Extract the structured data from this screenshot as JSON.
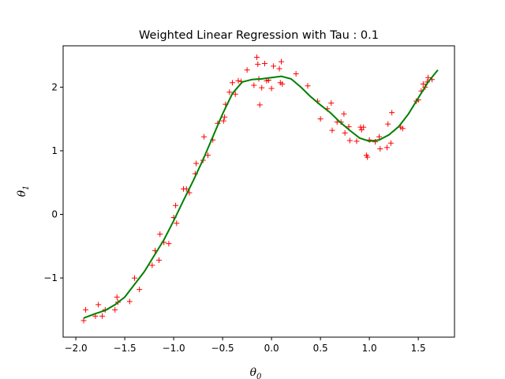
{
  "chart_data": {
    "type": "scatter",
    "title": "Weighted Linear Regression with Tau : 0.1",
    "xlabel": "θ",
    "xlabel_sub": "0",
    "ylabel": "θ",
    "ylabel_sub": "1",
    "xlim": [
      -2.13,
      1.87
    ],
    "ylim": [
      -1.93,
      2.65
    ],
    "xticks": [
      -2.0,
      -1.5,
      -1.0,
      -0.5,
      0.0,
      0.5,
      1.0,
      1.5
    ],
    "xtick_labels": [
      "−2.0",
      "−1.5",
      "−1.0",
      "−0.5",
      "0.0",
      "0.5",
      "1.0",
      "1.5"
    ],
    "yticks": [
      -1,
      0,
      1,
      2
    ],
    "ytick_labels": [
      "−1",
      "0",
      "1",
      "2"
    ],
    "grid": false,
    "series": [
      {
        "kind": "scatter",
        "marker": "+",
        "color": "#ff0000",
        "points": [
          [
            -1.92,
            -1.67
          ],
          [
            -1.9,
            -1.5
          ],
          [
            -1.8,
            -1.6
          ],
          [
            -1.77,
            -1.42
          ],
          [
            -1.73,
            -1.6
          ],
          [
            -1.7,
            -1.5
          ],
          [
            -1.6,
            -1.5
          ],
          [
            -1.58,
            -1.3
          ],
          [
            -1.57,
            -1.38
          ],
          [
            -1.45,
            -1.37
          ],
          [
            -1.4,
            -1.0
          ],
          [
            -1.35,
            -1.18
          ],
          [
            -1.22,
            -0.8
          ],
          [
            -1.19,
            -0.57
          ],
          [
            -1.15,
            -0.72
          ],
          [
            -1.14,
            -0.31
          ],
          [
            -1.1,
            -0.44
          ],
          [
            -1.05,
            -0.46
          ],
          [
            -1.0,
            -0.05
          ],
          [
            -0.98,
            0.14
          ],
          [
            -0.97,
            -0.14
          ],
          [
            -0.9,
            0.4
          ],
          [
            -0.87,
            0.4
          ],
          [
            -0.84,
            0.34
          ],
          [
            -0.78,
            0.64
          ],
          [
            -0.77,
            0.8
          ],
          [
            -0.7,
            0.85
          ],
          [
            -0.69,
            1.22
          ],
          [
            -0.65,
            0.93
          ],
          [
            -0.6,
            1.17
          ],
          [
            -0.55,
            1.43
          ],
          [
            -0.49,
            1.47
          ],
          [
            -0.48,
            1.53
          ],
          [
            -0.47,
            1.73
          ],
          [
            -0.43,
            1.92
          ],
          [
            -0.4,
            2.07
          ],
          [
            -0.37,
            1.89
          ],
          [
            -0.34,
            2.1
          ],
          [
            -0.31,
            2.09
          ],
          [
            -0.25,
            2.27
          ],
          [
            -0.18,
            2.03
          ],
          [
            -0.15,
            2.47
          ],
          [
            -0.14,
            2.36
          ],
          [
            -0.13,
            2.13
          ],
          [
            -0.12,
            1.72
          ],
          [
            -0.1,
            1.99
          ],
          [
            -0.07,
            2.37
          ],
          [
            -0.05,
            2.1
          ],
          [
            -0.03,
            2.11
          ],
          [
            0.0,
            1.98
          ],
          [
            0.02,
            2.33
          ],
          [
            0.08,
            2.29
          ],
          [
            0.09,
            2.07
          ],
          [
            0.1,
            2.4
          ],
          [
            0.11,
            2.05
          ],
          [
            0.25,
            2.21
          ],
          [
            0.37,
            2.02
          ],
          [
            0.47,
            1.78
          ],
          [
            0.5,
            1.5
          ],
          [
            0.57,
            1.66
          ],
          [
            0.61,
            1.75
          ],
          [
            0.62,
            1.32
          ],
          [
            0.67,
            1.45
          ],
          [
            0.71,
            1.45
          ],
          [
            0.74,
            1.58
          ],
          [
            0.75,
            1.28
          ],
          [
            0.79,
            1.38
          ],
          [
            0.8,
            1.16
          ],
          [
            0.87,
            1.15
          ],
          [
            0.91,
            1.37
          ],
          [
            0.92,
            1.33
          ],
          [
            0.94,
            1.37
          ],
          [
            0.97,
            0.93
          ],
          [
            0.98,
            0.9
          ],
          [
            1.0,
            1.17
          ],
          [
            1.06,
            1.14
          ],
          [
            1.1,
            1.22
          ],
          [
            1.11,
            1.03
          ],
          [
            1.18,
            1.05
          ],
          [
            1.19,
            1.42
          ],
          [
            1.22,
            1.12
          ],
          [
            1.23,
            1.6
          ],
          [
            1.32,
            1.37
          ],
          [
            1.34,
            1.35
          ],
          [
            1.48,
            1.78
          ],
          [
            1.5,
            1.8
          ],
          [
            1.53,
            1.94
          ],
          [
            1.55,
            2.05
          ],
          [
            1.57,
            2.0
          ],
          [
            1.59,
            2.08
          ],
          [
            1.6,
            2.15
          ],
          [
            1.64,
            2.12
          ]
        ]
      },
      {
        "kind": "line",
        "color": "#008000",
        "points": [
          [
            -1.92,
            -1.63
          ],
          [
            -1.8,
            -1.56
          ],
          [
            -1.7,
            -1.51
          ],
          [
            -1.6,
            -1.42
          ],
          [
            -1.5,
            -1.3
          ],
          [
            -1.4,
            -1.1
          ],
          [
            -1.3,
            -0.9
          ],
          [
            -1.2,
            -0.65
          ],
          [
            -1.1,
            -0.4
          ],
          [
            -1.0,
            -0.1
          ],
          [
            -0.9,
            0.22
          ],
          [
            -0.8,
            0.53
          ],
          [
            -0.7,
            0.86
          ],
          [
            -0.6,
            1.22
          ],
          [
            -0.5,
            1.58
          ],
          [
            -0.4,
            1.9
          ],
          [
            -0.3,
            2.08
          ],
          [
            -0.2,
            2.12
          ],
          [
            -0.1,
            2.13
          ],
          [
            0.0,
            2.15
          ],
          [
            0.1,
            2.17
          ],
          [
            0.2,
            2.13
          ],
          [
            0.3,
            2.0
          ],
          [
            0.4,
            1.85
          ],
          [
            0.5,
            1.72
          ],
          [
            0.6,
            1.6
          ],
          [
            0.7,
            1.45
          ],
          [
            0.8,
            1.32
          ],
          [
            0.9,
            1.2
          ],
          [
            1.0,
            1.15
          ],
          [
            1.1,
            1.17
          ],
          [
            1.2,
            1.25
          ],
          [
            1.3,
            1.38
          ],
          [
            1.4,
            1.58
          ],
          [
            1.5,
            1.83
          ],
          [
            1.6,
            2.08
          ],
          [
            1.7,
            2.27
          ]
        ]
      }
    ]
  }
}
